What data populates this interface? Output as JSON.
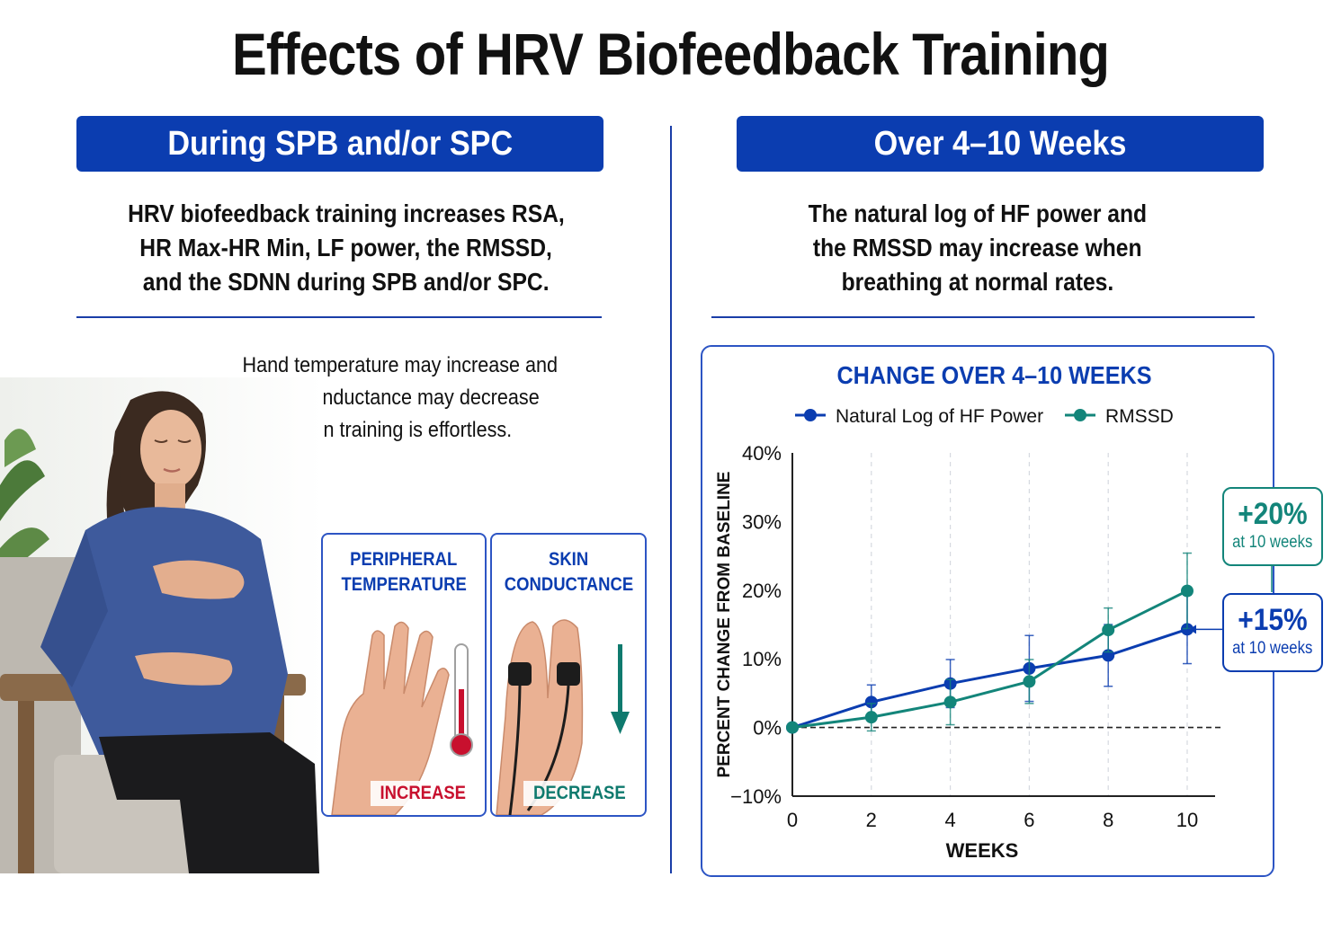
{
  "title": "Effects of HRV Biofeedback Training",
  "left": {
    "banner": "During SPB and/or SPC",
    "lines": [
      "HRV biofeedback training increases RSA,",
      "HR Max-HR Min, LF power, the RMSSD,",
      "and the SDNN during SPB and/or SPC."
    ],
    "note_lines": [
      "Hand temperature may increase and",
      "skin conductance may decrease",
      "when training is effortless."
    ],
    "cards": [
      {
        "title_lines": [
          "PERIPHERAL",
          "TEMPERATURE"
        ],
        "result": "INCREASE",
        "color": "#c8102e"
      },
      {
        "title_lines": [
          "SKIN",
          "CONDUCTANCE"
        ],
        "result": "DECREASE",
        "color": "#0f7a6e"
      }
    ]
  },
  "right": {
    "banner": "Over 4–10 Weeks",
    "lines": [
      "The natural log of HF power and",
      "the RMSSD may increase when",
      "breathing at normal rates."
    ],
    "callouts": [
      {
        "value": "+20%",
        "label": "at 10 weeks",
        "color": "#13857a"
      },
      {
        "value": "+15%",
        "label": "at 10 weeks",
        "color": "#0b3db0"
      }
    ]
  },
  "chart_data": {
    "type": "line",
    "title": "CHANGE OVER 4–10 WEEKS",
    "xlabel": "WEEKS",
    "ylabel": "PERCENT CHANGE FROM BASELINE",
    "x": [
      0,
      2,
      4,
      6,
      8,
      10
    ],
    "xticks": [
      "0",
      "2",
      "4",
      "6",
      "8",
      "10"
    ],
    "ylim": [
      -10,
      40
    ],
    "yticks": [
      "40%",
      "30%",
      "20%",
      "10%",
      "0%",
      "−10%"
    ],
    "ytick_values": [
      40,
      30,
      20,
      10,
      0,
      -10
    ],
    "grid": "vertical dashed",
    "legend": "top",
    "baseline": 0,
    "series": [
      {
        "name": "Natural Log of HF Power",
        "color": "#0b3db0",
        "values": [
          0,
          3.7,
          6.4,
          8.6,
          10.5,
          14.3
        ],
        "error": [
          0,
          2.5,
          3.5,
          4.8,
          4.5,
          5.0
        ]
      },
      {
        "name": "RMSSD",
        "color": "#13857a",
        "values": [
          0,
          1.5,
          3.7,
          6.7,
          14.2,
          19.9
        ],
        "error": [
          0,
          2.0,
          3.3,
          3.2,
          3.2,
          5.5
        ]
      }
    ]
  }
}
